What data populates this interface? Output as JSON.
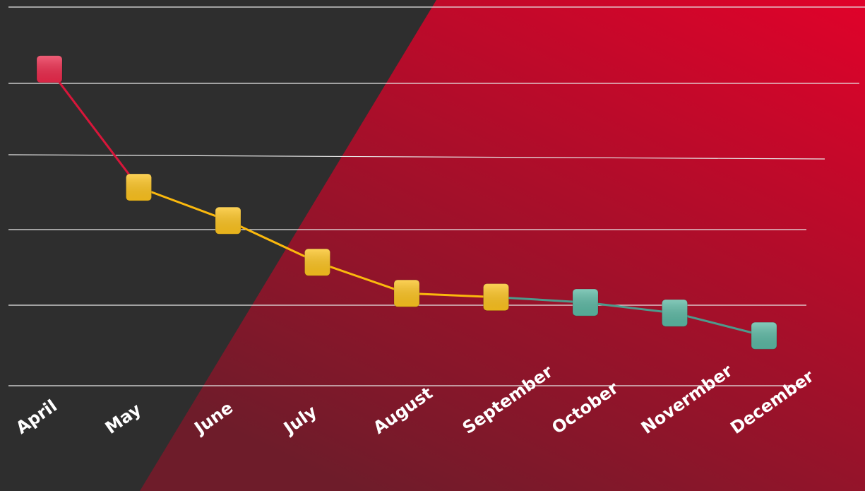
{
  "chart_data": {
    "type": "line",
    "categories": [
      "April",
      "May",
      "June",
      "July",
      "August",
      "September",
      "October",
      "Novermber",
      "December"
    ],
    "values": [
      4.18,
      2.62,
      2.18,
      1.63,
      1.22,
      1.17,
      1.1,
      0.96,
      0.66
    ],
    "point_colors": [
      "#ec2a4c",
      "#fcc31f",
      "#fcc31f",
      "#fcc31f",
      "#fcc31f",
      "#fcc31f",
      "#5cb8a3",
      "#5cb8a3",
      "#5cb8a3"
    ],
    "segment_colors": [
      "#d8163a",
      "#fbb90d",
      "#fbb90d",
      "#fbb90d",
      "#fbb90d",
      "#4e9a8c",
      "#4e9a8c",
      "#4e9a8c"
    ],
    "ylim": [
      0,
      5
    ]
  }
}
